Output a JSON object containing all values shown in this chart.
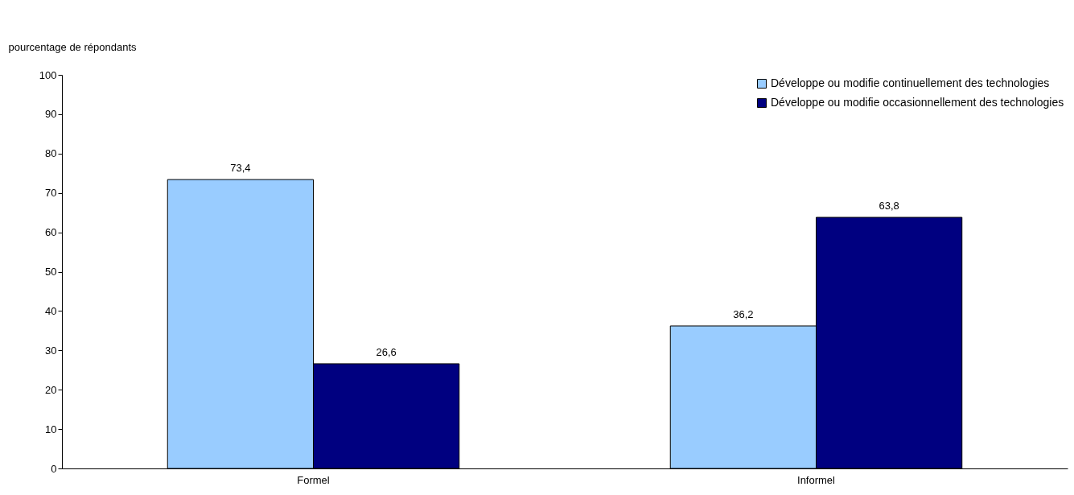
{
  "chart_data": {
    "type": "bar",
    "ylabel": "pourcentage de répondants",
    "categories": [
      "Formel",
      "Informel"
    ],
    "series": [
      {
        "name": "Développe ou modifie continuellement des technologies",
        "color": "#99ccff",
        "values": [
          73.4,
          36.2
        ],
        "value_labels": [
          "73,4",
          "36,2"
        ]
      },
      {
        "name": "Développe ou modifie occasionnellement des technologies",
        "color": "#000080",
        "values": [
          26.6,
          63.8
        ],
        "value_labels": [
          "26,6",
          "63,8"
        ]
      }
    ],
    "ylim": [
      0,
      100
    ],
    "yticks": [
      0,
      10,
      20,
      30,
      40,
      50,
      60,
      70,
      80,
      90,
      100
    ],
    "legend": "top right"
  }
}
